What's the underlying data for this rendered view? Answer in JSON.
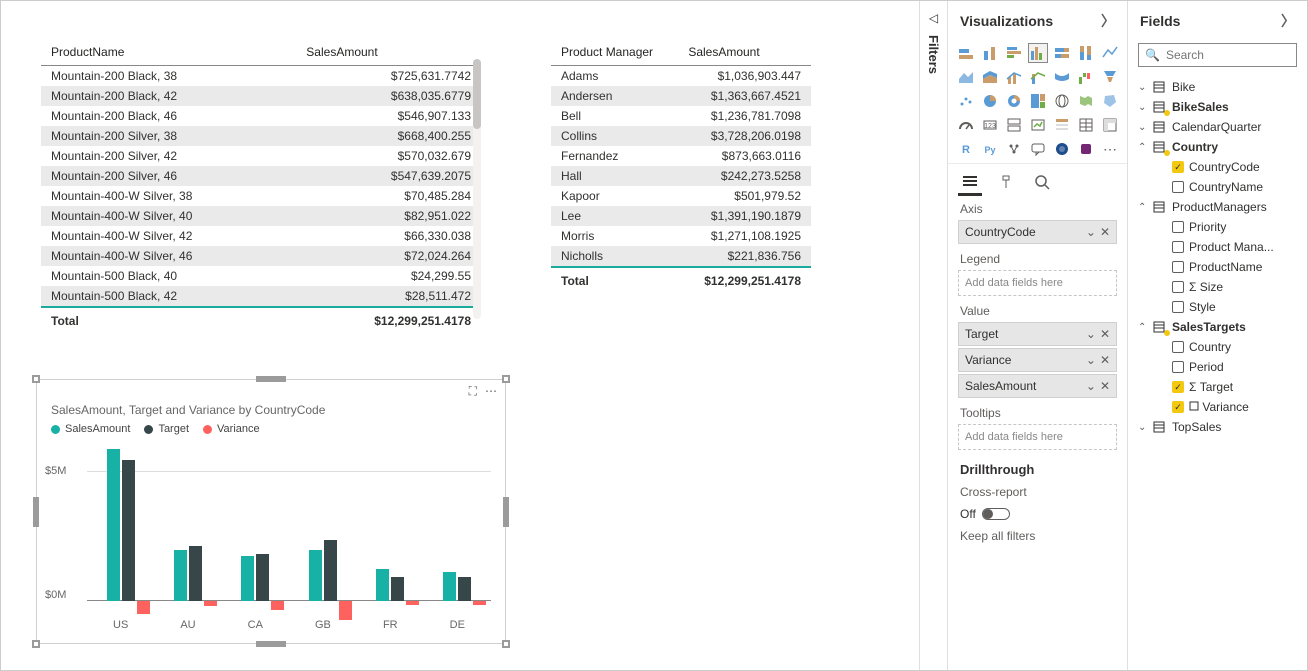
{
  "tables": {
    "products": {
      "headers": [
        "ProductName",
        "SalesAmount"
      ],
      "rows": [
        [
          "Mountain-200 Black, 38",
          "$725,631.7742"
        ],
        [
          "Mountain-200 Black, 42",
          "$638,035.6779"
        ],
        [
          "Mountain-200 Black, 46",
          "$546,907.133"
        ],
        [
          "Mountain-200 Silver, 38",
          "$668,400.255"
        ],
        [
          "Mountain-200 Silver, 42",
          "$570,032.679"
        ],
        [
          "Mountain-200 Silver, 46",
          "$547,639.2075"
        ],
        [
          "Mountain-400-W Silver, 38",
          "$70,485.284"
        ],
        [
          "Mountain-400-W Silver, 40",
          "$82,951.022"
        ],
        [
          "Mountain-400-W Silver, 42",
          "$66,330.038"
        ],
        [
          "Mountain-400-W Silver, 46",
          "$72,024.264"
        ],
        [
          "Mountain-500 Black, 40",
          "$24,299.55"
        ],
        [
          "Mountain-500 Black, 42",
          "$28,511.472"
        ]
      ],
      "total_label": "Total",
      "total_value": "$12,299,251.4178"
    },
    "managers": {
      "headers": [
        "Product Manager",
        "SalesAmount"
      ],
      "rows": [
        [
          "Adams",
          "$1,036,903.447"
        ],
        [
          "Andersen",
          "$1,363,667.4521"
        ],
        [
          "Bell",
          "$1,236,781.7098"
        ],
        [
          "Collins",
          "$3,728,206.0198"
        ],
        [
          "Fernandez",
          "$873,663.0116"
        ],
        [
          "Hall",
          "$242,273.5258"
        ],
        [
          "Kapoor",
          "$501,979.52"
        ],
        [
          "Lee",
          "$1,391,190.1879"
        ],
        [
          "Morris",
          "$1,271,108.1925"
        ],
        [
          "Nicholls",
          "$221,836.756"
        ]
      ],
      "total_label": "Total",
      "total_value": "$12,299,251.4178"
    }
  },
  "chart": {
    "title": "SalesAmount, Target and Variance by CountryCode",
    "legend": [
      "SalesAmount",
      "Target",
      "Variance"
    ],
    "colors": {
      "SalesAmount": "#17b2a5",
      "Target": "#374649",
      "Variance": "#fd625e"
    },
    "yticks": [
      "$5M",
      "$0M"
    ],
    "ymax": 6000000,
    "categories": [
      {
        "label": "US",
        "SalesAmount": 5700000,
        "Target": 5300000,
        "Variance": -500000
      },
      {
        "label": "AU",
        "SalesAmount": 1900000,
        "Target": 2050000,
        "Variance": -200000
      },
      {
        "label": "CA",
        "SalesAmount": 1700000,
        "Target": 1750000,
        "Variance": -350000
      },
      {
        "label": "GB",
        "SalesAmount": 1900000,
        "Target": 2300000,
        "Variance": -700000
      },
      {
        "label": "FR",
        "SalesAmount": 1200000,
        "Target": 900000,
        "Variance": -150000
      },
      {
        "label": "DE",
        "SalesAmount": 1100000,
        "Target": 900000,
        "Variance": -150000
      }
    ]
  },
  "vis_panel": {
    "title": "Visualizations",
    "wells": {
      "axis_label": "Axis",
      "axis_items": [
        "CountryCode"
      ],
      "legend_label": "Legend",
      "legend_placeholder": "Add data fields here",
      "value_label": "Value",
      "value_items": [
        "Target",
        "Variance",
        "SalesAmount"
      ],
      "tooltips_label": "Tooltips",
      "tooltips_placeholder": "Add data fields here"
    },
    "drillthrough_label": "Drillthrough",
    "cross_report_label": "Cross-report",
    "toggle_off": "Off",
    "keep_filters": "Keep all filters"
  },
  "fields_panel": {
    "title": "Fields",
    "search_placeholder": "Search",
    "tables": {
      "Bike": {
        "expanded": false
      },
      "BikeSales": {
        "expanded": false,
        "checked": true
      },
      "CalendarQuarter": {
        "expanded": false
      },
      "Country": {
        "expanded": true,
        "checked": true,
        "fields": [
          {
            "name": "CountryCode",
            "checked": true
          },
          {
            "name": "CountryName",
            "checked": false
          }
        ]
      },
      "ProductManagers": {
        "expanded": true,
        "fields": [
          {
            "name": "Priority",
            "checked": false
          },
          {
            "name": "Product Mana...",
            "checked": false
          },
          {
            "name": "ProductName",
            "checked": false
          },
          {
            "name": "Size",
            "checked": false,
            "sigma": true
          },
          {
            "name": "Style",
            "checked": false
          }
        ]
      },
      "SalesTargets": {
        "expanded": true,
        "checked": true,
        "fields": [
          {
            "name": "Country",
            "checked": false
          },
          {
            "name": "Period",
            "checked": false
          },
          {
            "name": "Target",
            "checked": true,
            "sigma": true
          },
          {
            "name": "Variance",
            "checked": true,
            "fx": true
          }
        ]
      },
      "TopSales": {
        "expanded": false
      }
    }
  },
  "filters_label": "Filters"
}
